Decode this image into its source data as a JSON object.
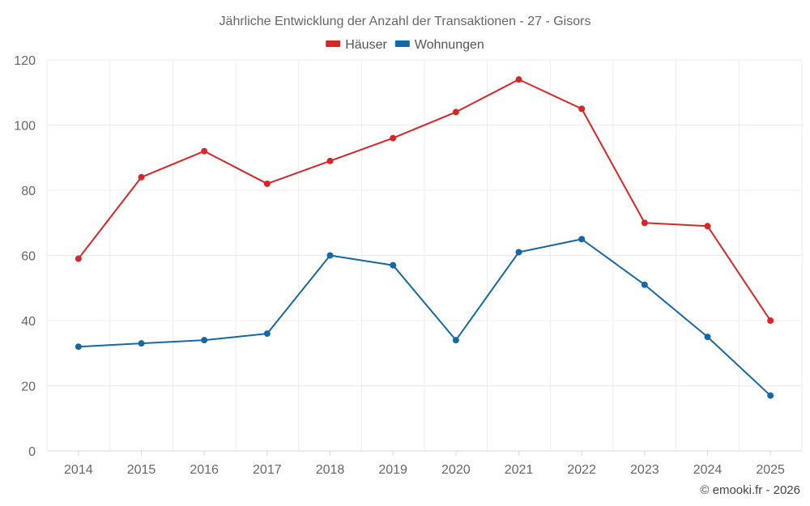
{
  "chart_data": {
    "type": "line",
    "title": "Jährliche Entwicklung der Anzahl der Transaktionen - 27 - Gisors",
    "categories": [
      "2014",
      "2015",
      "2016",
      "2017",
      "2018",
      "2019",
      "2020",
      "2021",
      "2022",
      "2023",
      "2024",
      "2025"
    ],
    "series": [
      {
        "name": "Häuser",
        "color": "#d62728",
        "values": [
          59,
          84,
          92,
          82,
          89,
          96,
          104,
          114,
          105,
          70,
          69,
          40
        ]
      },
      {
        "name": "Wohnungen",
        "color": "#1668a5",
        "values": [
          32,
          33,
          34,
          36,
          60,
          57,
          34,
          61,
          65,
          51,
          35,
          17
        ]
      }
    ],
    "ylim": [
      0,
      120
    ],
    "yticks": [
      "0",
      "20",
      "40",
      "60",
      "80",
      "100",
      "120"
    ],
    "ytick_values": [
      0,
      20,
      40,
      60,
      80,
      100,
      120
    ],
    "xlabel": "",
    "ylabel": "",
    "grid": true,
    "legend_position": "top-center"
  },
  "credit": "© emooki.fr - 2026"
}
